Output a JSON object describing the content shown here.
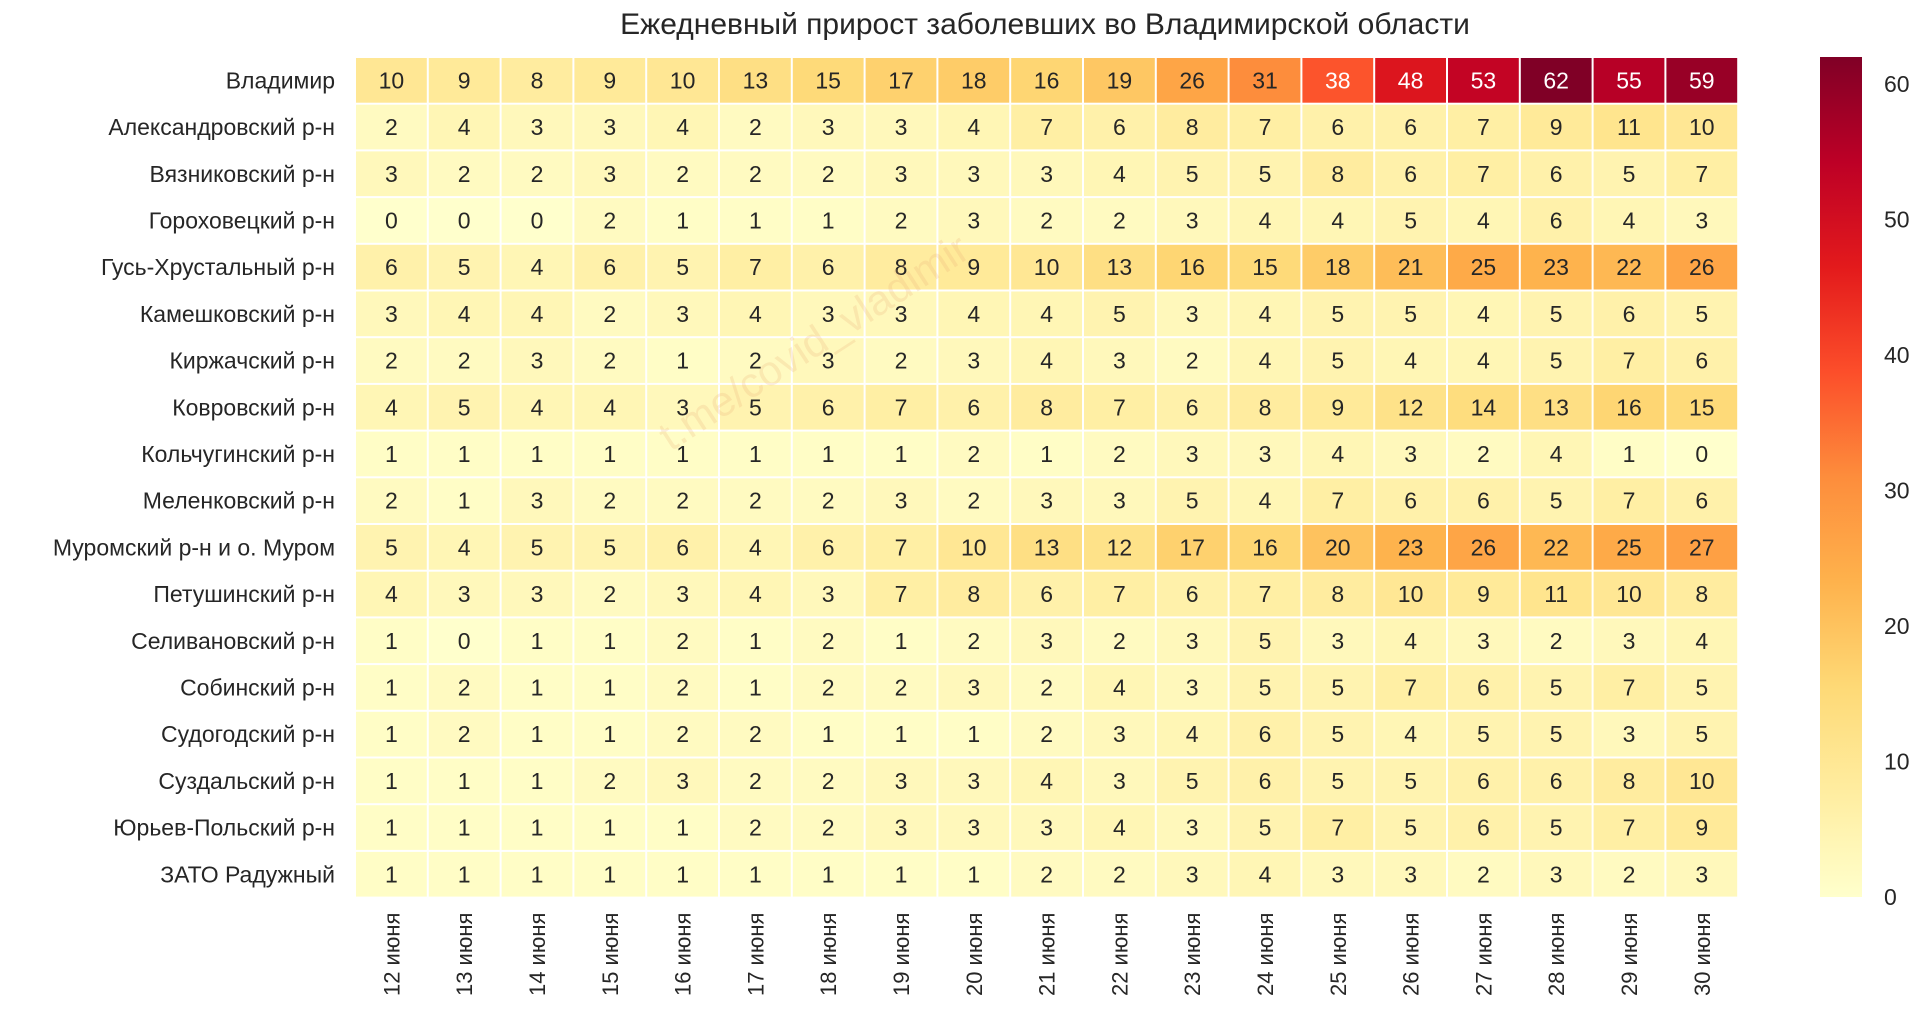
{
  "chart_data": {
    "type": "heatmap",
    "title": "Ежедневный прирост заболевших во Владимирской области",
    "watermark": "t.me/covid_vladimir",
    "x_labels": [
      "12 июня",
      "13 июня",
      "14 июня",
      "15 июня",
      "16 июня",
      "17 июня",
      "18 июня",
      "19 июня",
      "20 июня",
      "21 июня",
      "22 июня",
      "23 июня",
      "24 июня",
      "25 июня",
      "26 июня",
      "27 июня",
      "28 июня",
      "29 июня",
      "30 июня"
    ],
    "y_labels": [
      "Владимир",
      "Александровский р-н",
      "Вязниковский р-н",
      "Гороховецкий р-н",
      "Гусь-Хрустальный р-н",
      "Камешковский р-н",
      "Киржачский р-н",
      "Ковровский р-н",
      "Кольчугинский р-н",
      "Меленковский р-н",
      "Муромский р-н и о. Муром",
      "Петушинский р-н",
      "Селивановский р-н",
      "Собинский р-н",
      "Судогодский р-н",
      "Суздальский р-н",
      "Юрьев-Польский р-н",
      "ЗАТО Радужный"
    ],
    "values": [
      [
        10,
        9,
        8,
        9,
        10,
        13,
        15,
        17,
        18,
        16,
        19,
        26,
        31,
        38,
        48,
        53,
        62,
        55,
        59
      ],
      [
        2,
        4,
        3,
        3,
        4,
        2,
        3,
        3,
        4,
        7,
        6,
        8,
        7,
        6,
        6,
        7,
        9,
        11,
        10
      ],
      [
        3,
        2,
        2,
        3,
        2,
        2,
        2,
        3,
        3,
        3,
        4,
        5,
        5,
        8,
        6,
        7,
        6,
        5,
        7
      ],
      [
        0,
        0,
        0,
        2,
        1,
        1,
        1,
        2,
        3,
        2,
        2,
        3,
        4,
        4,
        5,
        4,
        6,
        4,
        3
      ],
      [
        6,
        5,
        4,
        6,
        5,
        7,
        6,
        8,
        9,
        10,
        13,
        16,
        15,
        18,
        21,
        25,
        23,
        22,
        26
      ],
      [
        3,
        4,
        4,
        2,
        3,
        4,
        3,
        3,
        4,
        4,
        5,
        3,
        4,
        5,
        5,
        4,
        5,
        6,
        5
      ],
      [
        2,
        2,
        3,
        2,
        1,
        2,
        3,
        2,
        3,
        4,
        3,
        2,
        4,
        5,
        4,
        4,
        5,
        7,
        6
      ],
      [
        4,
        5,
        4,
        4,
        3,
        5,
        6,
        7,
        6,
        8,
        7,
        6,
        8,
        9,
        12,
        14,
        13,
        16,
        15
      ],
      [
        1,
        1,
        1,
        1,
        1,
        1,
        1,
        1,
        2,
        1,
        2,
        3,
        3,
        4,
        3,
        2,
        4,
        1,
        0
      ],
      [
        2,
        1,
        3,
        2,
        2,
        2,
        2,
        3,
        2,
        3,
        3,
        5,
        4,
        7,
        6,
        6,
        5,
        7,
        6
      ],
      [
        5,
        4,
        5,
        5,
        6,
        4,
        6,
        7,
        10,
        13,
        12,
        17,
        16,
        20,
        23,
        26,
        22,
        25,
        27
      ],
      [
        4,
        3,
        3,
        2,
        3,
        4,
        3,
        7,
        8,
        6,
        7,
        6,
        7,
        8,
        10,
        9,
        11,
        10,
        8
      ],
      [
        1,
        0,
        1,
        1,
        2,
        1,
        2,
        1,
        2,
        3,
        2,
        3,
        5,
        3,
        4,
        3,
        2,
        3,
        4
      ],
      [
        1,
        2,
        1,
        1,
        2,
        1,
        2,
        2,
        3,
        2,
        4,
        3,
        5,
        5,
        7,
        6,
        5,
        7,
        5
      ],
      [
        1,
        2,
        1,
        1,
        2,
        2,
        1,
        1,
        1,
        2,
        3,
        4,
        6,
        5,
        4,
        5,
        5,
        3,
        5
      ],
      [
        1,
        1,
        1,
        2,
        3,
        2,
        2,
        3,
        3,
        4,
        3,
        5,
        6,
        5,
        5,
        6,
        6,
        8,
        10
      ],
      [
        1,
        1,
        1,
        1,
        1,
        2,
        2,
        3,
        3,
        3,
        4,
        3,
        5,
        7,
        5,
        6,
        5,
        7,
        9
      ],
      [
        1,
        1,
        1,
        1,
        1,
        1,
        1,
        1,
        1,
        2,
        2,
        3,
        4,
        3,
        3,
        2,
        3,
        2,
        3
      ]
    ],
    "colorbar": {
      "vmin": 0,
      "vmax": 62,
      "ticks": [
        0,
        10,
        20,
        30,
        40,
        50,
        60
      ],
      "colormap": "YlOrRd"
    },
    "colormap_stops": [
      "#ffffcc",
      "#ffeda0",
      "#fed976",
      "#feb24c",
      "#fd8d3c",
      "#fc4e2a",
      "#e31a1c",
      "#bd0026",
      "#800026"
    ],
    "cell_text_color_light": "#ffffff",
    "cell_text_color_dark": "#262626"
  }
}
